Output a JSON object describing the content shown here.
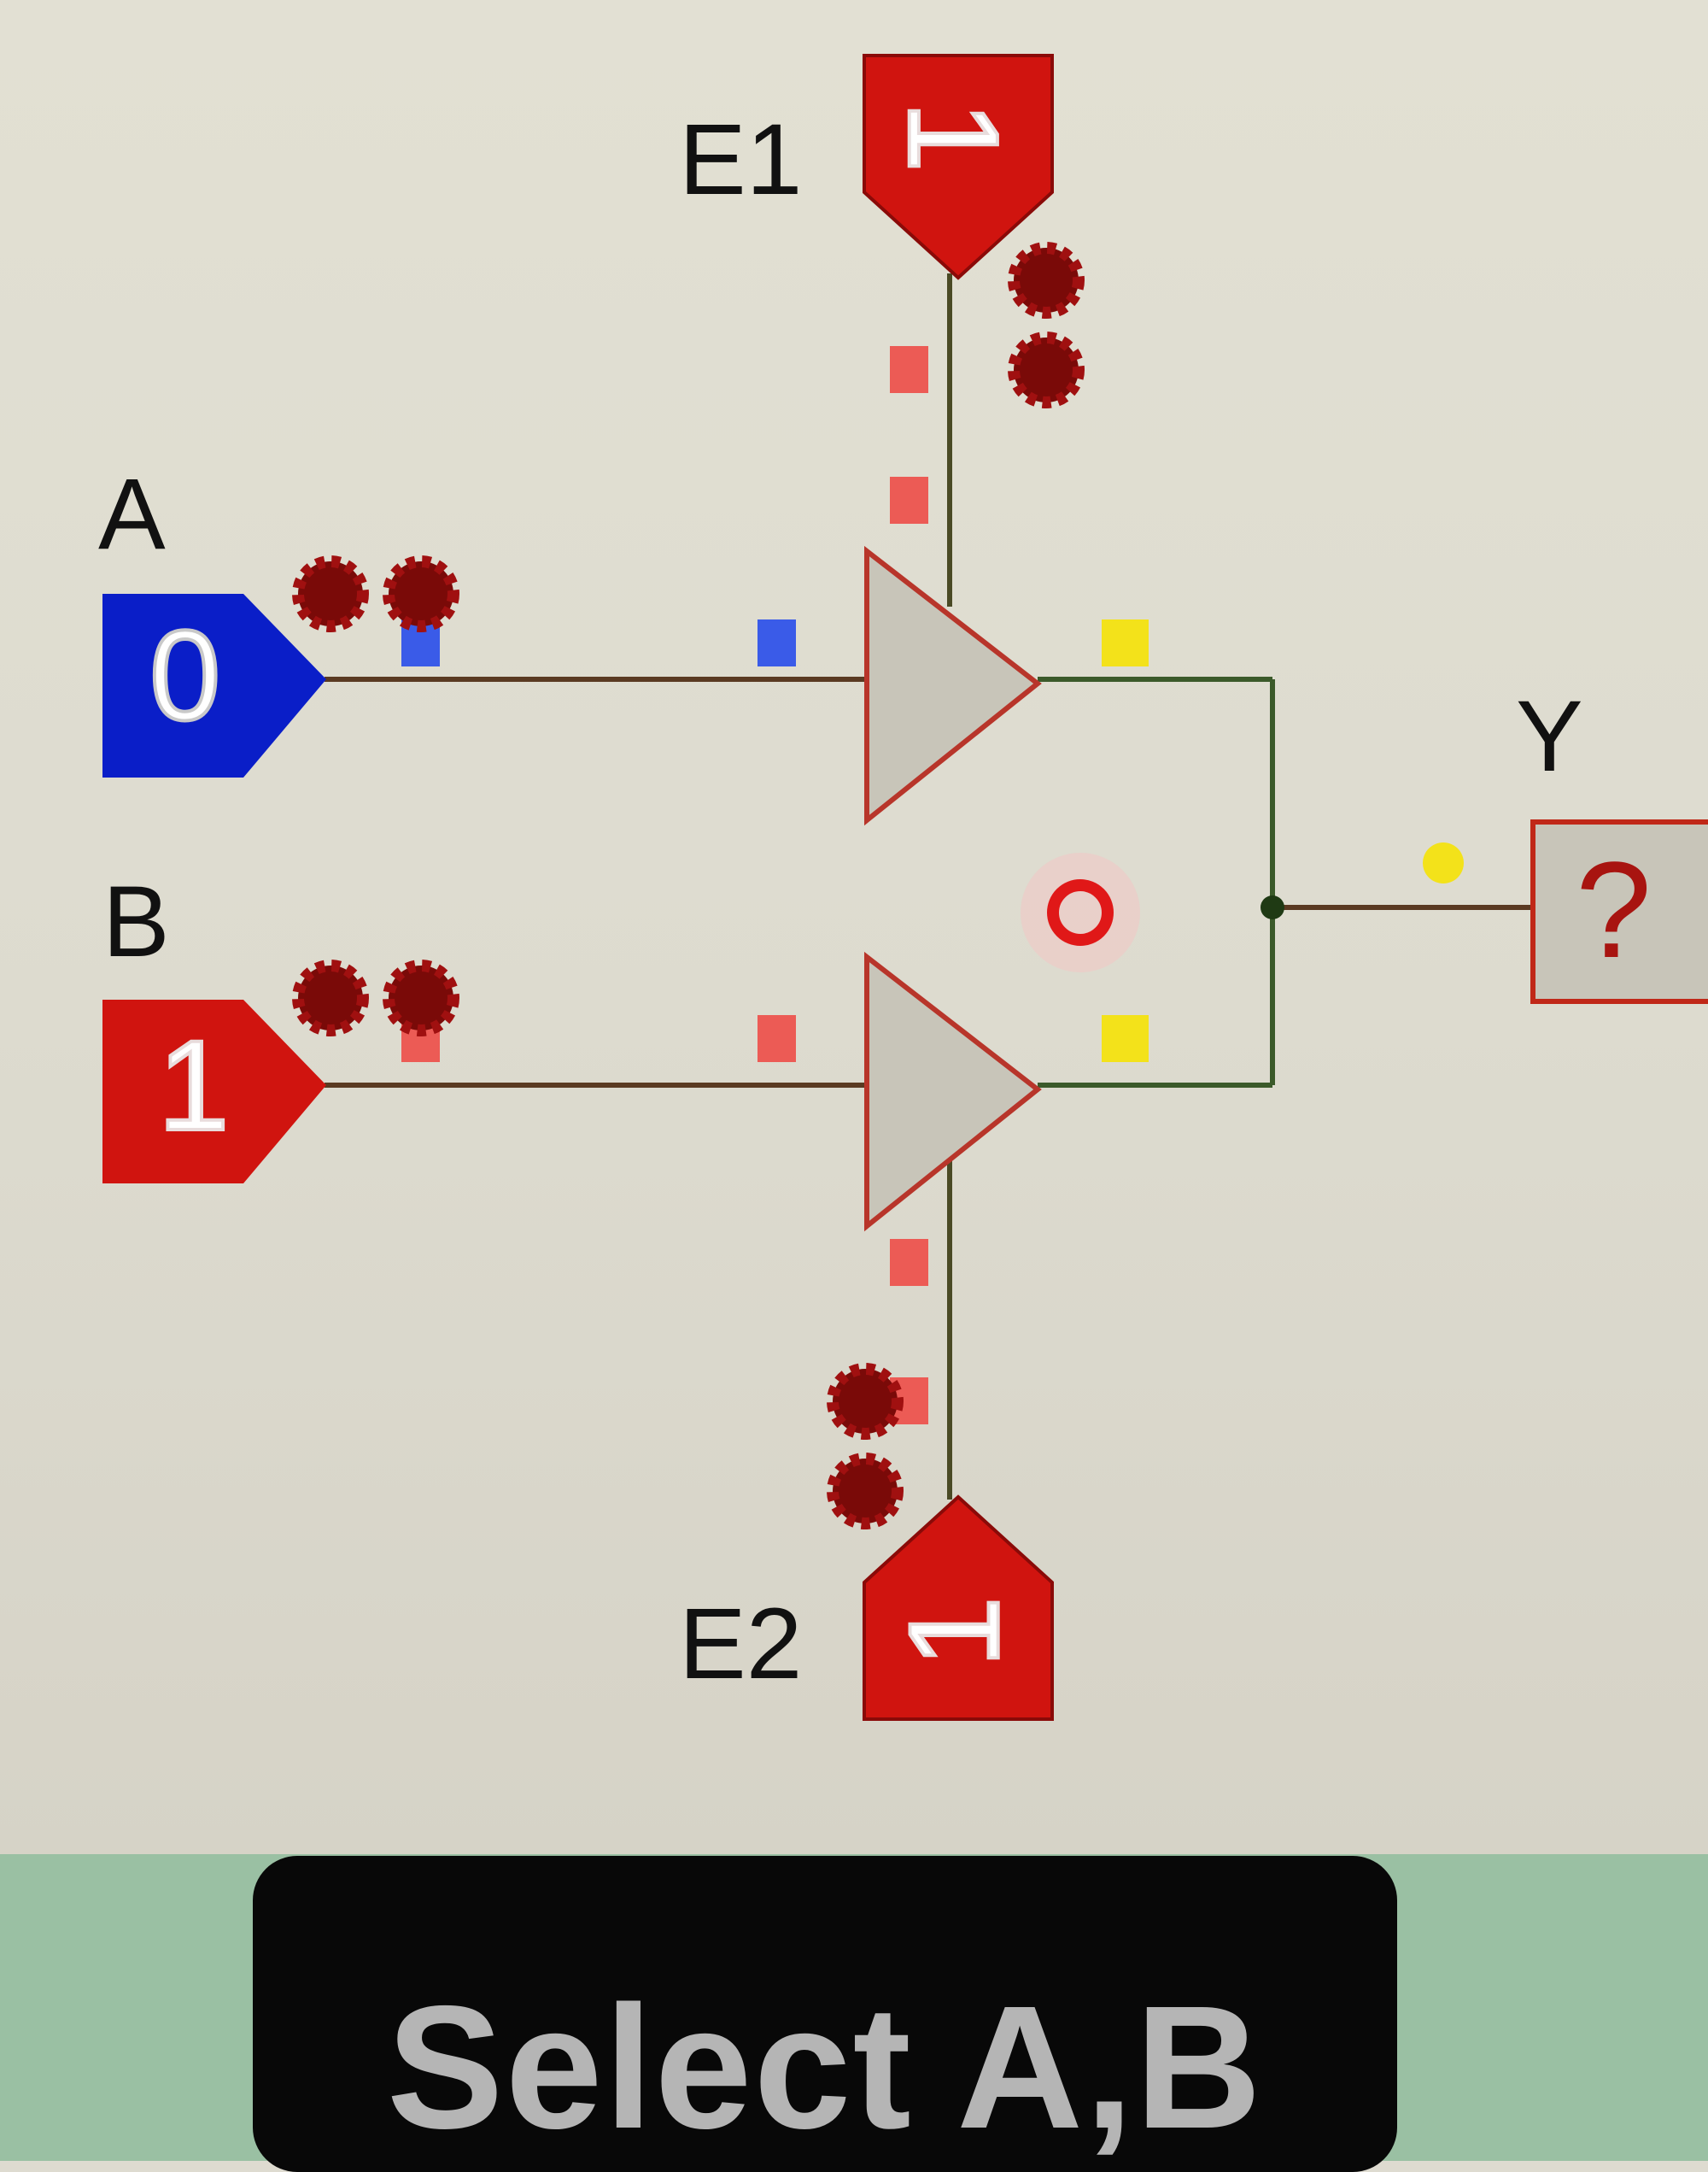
{
  "labels": {
    "e1": "E1",
    "e2": "E2",
    "a": "A",
    "b": "B",
    "y": "Y"
  },
  "inputs": {
    "a_value": "0",
    "b_value": "1",
    "e1_value": "1",
    "e2_value": "1"
  },
  "output": {
    "y_value": "?"
  },
  "caption": "Select A,B",
  "colors": {
    "logic_low": "#0a1ec8",
    "logic_high": "#d0140f",
    "wire": "#2f4a22",
    "buffer_fill": "#c8c5b9",
    "caption_bg": "#080808",
    "footer_bg": "#9ac0a3"
  }
}
